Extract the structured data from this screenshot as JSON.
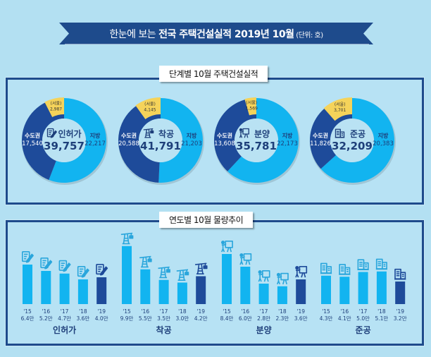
{
  "header": {
    "title_prefix": "한눈에 보는 ",
    "title_bold": "전국 주택건설실적 2019년 10월",
    "unit": " (단위: 호)"
  },
  "colors": {
    "local": "#12b4f0",
    "capital": "#1e4b9a",
    "seoul": "#f5d35a",
    "center": "#b9e2f3",
    "highlight_bar": "#1e4b9a",
    "bar": "#12b4f0"
  },
  "section1": {
    "label": "단계별 10월 주택건설실적"
  },
  "section2": {
    "label": "연도별 10월 물량추이"
  },
  "chart_data": [
    {
      "type": "pie",
      "title": "인허가",
      "total": "39,757",
      "icon": "document-pen-icon",
      "slices": [
        {
          "name": "지방",
          "value": 22217,
          "label": "22,217"
        },
        {
          "name": "수도권",
          "value": 17540,
          "label": "17,540"
        }
      ],
      "sub_slice": {
        "name": "(서울)",
        "value": 2987,
        "label": "2,987",
        "parent": "수도권"
      }
    },
    {
      "type": "pie",
      "title": "착공",
      "total": "41,791",
      "icon": "crane-icon",
      "slices": [
        {
          "name": "지방",
          "value": 21203,
          "label": "21,203"
        },
        {
          "name": "수도권",
          "value": 20588,
          "label": "20,588"
        }
      ],
      "sub_slice": {
        "name": "(서울)",
        "value": 4145,
        "label": "4,145",
        "parent": "수도권"
      }
    },
    {
      "type": "pie",
      "title": "분양",
      "total": "35,781",
      "icon": "presenter-board-icon",
      "slices": [
        {
          "name": "지방",
          "value": 22173,
          "label": "22,173"
        },
        {
          "name": "수도권",
          "value": 13608,
          "label": "13,608"
        }
      ],
      "sub_slice": {
        "name": "(서울)",
        "value": 1569,
        "label": "1,569",
        "parent": "수도권"
      }
    },
    {
      "type": "pie",
      "title": "준공",
      "total": "32,209",
      "icon": "buildings-icon",
      "slices": [
        {
          "name": "지방",
          "value": 20383,
          "label": "20,383"
        },
        {
          "name": "수도권",
          "value": 11826,
          "label": "11,826"
        }
      ],
      "sub_slice": {
        "name": "(서울)",
        "value": 3701,
        "label": "3,701",
        "parent": "수도권"
      }
    },
    {
      "type": "bar",
      "title": "연도별 10월 물량추이",
      "unit": "만",
      "groups": [
        {
          "name": "인허가",
          "icon": "document-pen-icon",
          "categories": [
            "'15",
            "'16",
            "'17",
            "'18",
            "'19"
          ],
          "values": [
            6.4,
            5.2,
            4.7,
            3.6,
            4.0
          ],
          "labels": [
            "6.4만",
            "5.2만",
            "4.7만",
            "3.6만",
            "4.0만"
          ]
        },
        {
          "name": "착공",
          "icon": "crane-icon",
          "categories": [
            "'15",
            "'16",
            "'17",
            "'18",
            "'19"
          ],
          "values": [
            9.9,
            5.5,
            3.5,
            3.0,
            4.2
          ],
          "labels": [
            "9.9만",
            "5.5만",
            "3.5만",
            "3.0만",
            "4.2만"
          ]
        },
        {
          "name": "분양",
          "icon": "presenter-board-icon",
          "categories": [
            "'15",
            "'16",
            "'17",
            "'18",
            "'19"
          ],
          "values": [
            8.4,
            6.0,
            2.8,
            2.3,
            3.6
          ],
          "labels": [
            "8.4만",
            "6.0만",
            "2.8만",
            "2.3만",
            "3.6만"
          ]
        },
        {
          "name": "준공",
          "icon": "buildings-icon",
          "categories": [
            "'15",
            "'16",
            "'17",
            "'18",
            "'19"
          ],
          "values": [
            4.3,
            4.1,
            5.0,
            5.1,
            3.2
          ],
          "labels": [
            "4.3만",
            "4.1만",
            "5.0만",
            "5.1만",
            "3.2만"
          ]
        }
      ],
      "highlight_category": "'19"
    }
  ]
}
